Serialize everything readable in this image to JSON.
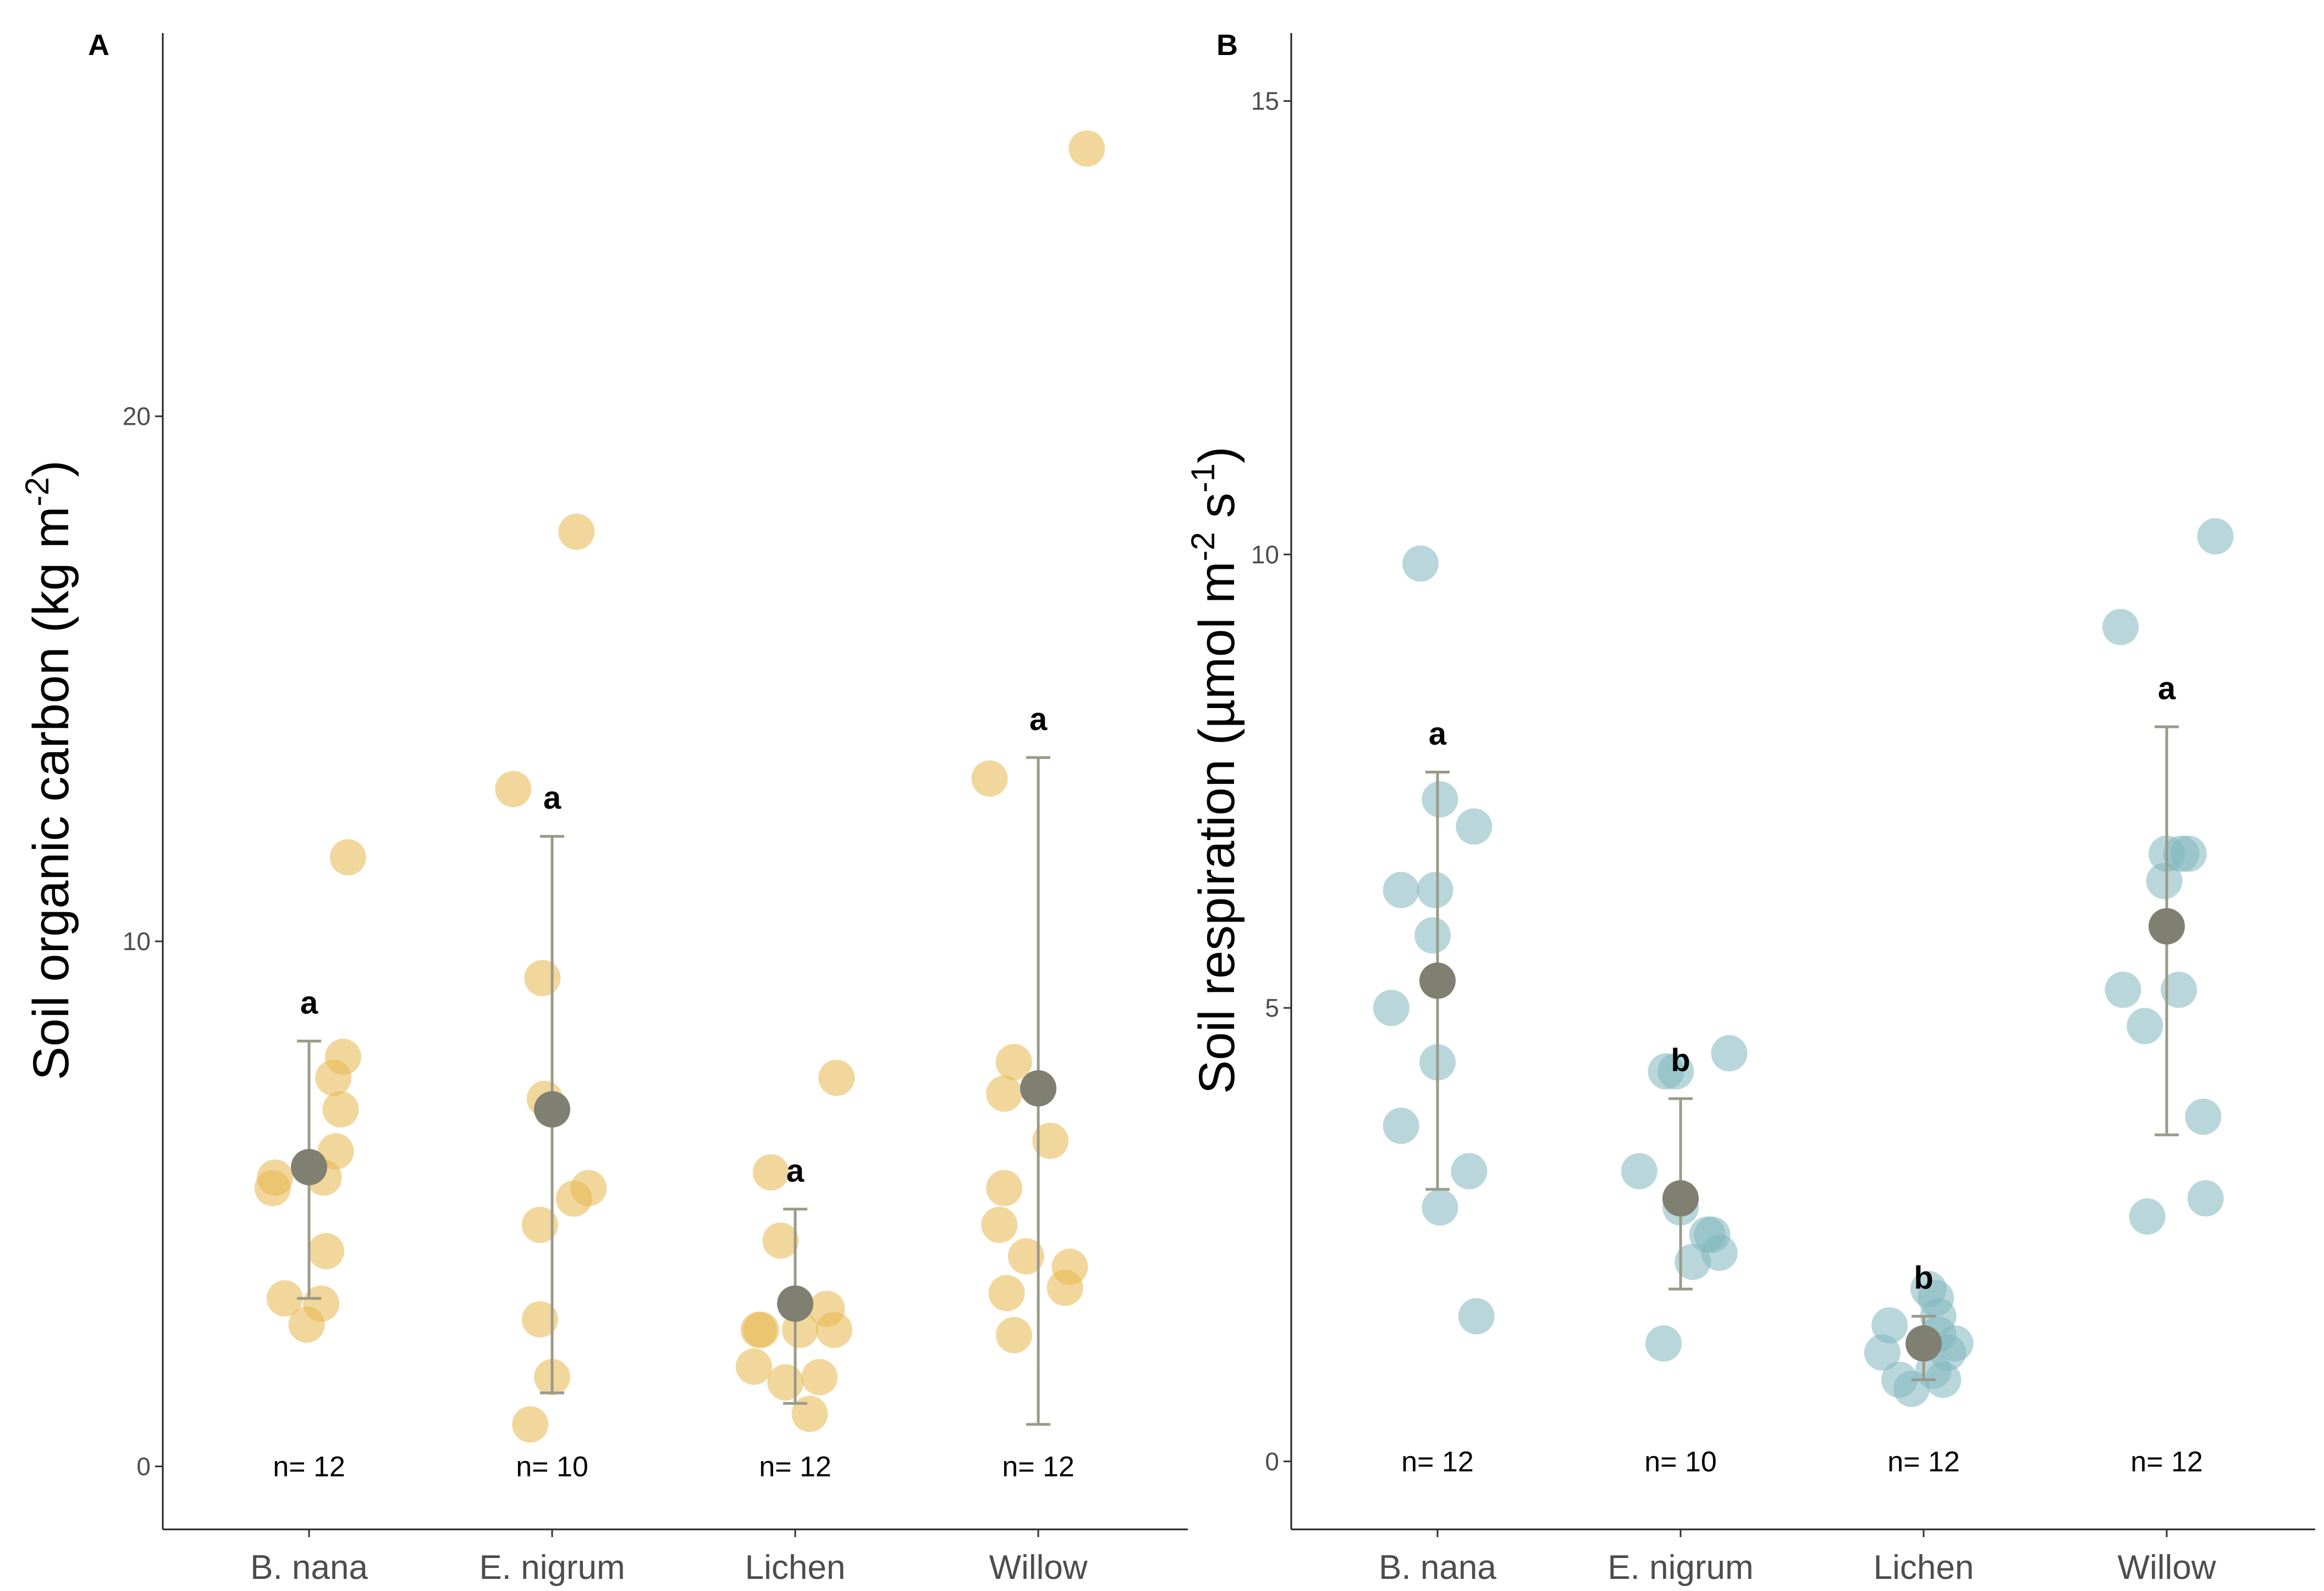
{
  "chart_data": [
    {
      "type": "scatter",
      "panel": "A",
      "ylabel": {
        "main": "Soil organic carbon (kg m",
        "sup": "-2",
        "close": ")"
      },
      "ylim": [
        -1.2,
        27.3
      ],
      "yticks": [
        0,
        10,
        20
      ],
      "categories": [
        "B. nana",
        "E. nigrum",
        "Lichen",
        "Willow"
      ],
      "point_color": "#e8b64c",
      "mean_color": "#7f7f72",
      "errorbar_color": "#9a9a88",
      "groups": [
        {
          "category": "B. nana",
          "n_label": "n= 12",
          "letter": "a",
          "mean": 5.7,
          "err_low": 3.2,
          "err_high": 8.1,
          "points": [
            [
              -0.15,
              5.3
            ],
            [
              -0.14,
              5.5
            ],
            [
              -0.1,
              3.2
            ],
            [
              -0.01,
              2.7
            ],
            [
              0.05,
              3.1
            ],
            [
              0.06,
              5.5
            ],
            [
              0.07,
              4.1
            ],
            [
              0.1,
              7.4
            ],
            [
              0.11,
              6.0
            ],
            [
              0.13,
              6.8
            ],
            [
              0.14,
              7.8
            ],
            [
              0.16,
              11.6
            ]
          ]
        },
        {
          "category": "E. nigrum",
          "n_label": "n= 10",
          "letter": "a",
          "mean": 6.8,
          "err_low": 1.4,
          "err_high": 12.0,
          "points": [
            [
              -0.16,
              12.9
            ],
            [
              -0.09,
              0.8
            ],
            [
              -0.05,
              2.8
            ],
            [
              -0.05,
              4.6
            ],
            [
              -0.04,
              9.3
            ],
            [
              -0.03,
              7.0
            ],
            [
              0.0,
              1.7
            ],
            [
              0.09,
              5.1
            ],
            [
              0.1,
              17.8
            ],
            [
              0.15,
              5.3
            ]
          ]
        },
        {
          "category": "Lichen",
          "n_label": "n= 12",
          "letter": "a",
          "mean": 3.1,
          "err_low": 1.2,
          "err_high": 4.9,
          "points": [
            [
              -0.17,
              1.9
            ],
            [
              -0.15,
              2.6
            ],
            [
              -0.14,
              2.6
            ],
            [
              -0.1,
              5.6
            ],
            [
              -0.06,
              4.3
            ],
            [
              -0.04,
              1.6
            ],
            [
              0.02,
              2.6
            ],
            [
              0.06,
              1.0
            ],
            [
              0.1,
              1.7
            ],
            [
              0.13,
              3.0
            ],
            [
              0.16,
              2.6
            ],
            [
              0.17,
              7.4
            ]
          ]
        },
        {
          "category": "Willow",
          "n_label": "n= 12",
          "letter": "a",
          "mean": 7.2,
          "err_low": 0.8,
          "err_high": 13.5,
          "points": [
            [
              -0.2,
              13.1
            ],
            [
              -0.16,
              4.6
            ],
            [
              -0.14,
              7.1
            ],
            [
              -0.14,
              5.3
            ],
            [
              -0.13,
              3.3
            ],
            [
              -0.1,
              2.5
            ],
            [
              -0.1,
              7.7
            ],
            [
              -0.05,
              4.0
            ],
            [
              0.05,
              6.2
            ],
            [
              0.11,
              3.4
            ],
            [
              0.13,
              3.8
            ],
            [
              0.2,
              25.1
            ]
          ]
        }
      ]
    },
    {
      "type": "scatter",
      "panel": "B",
      "ylabel": {
        "main": "Soil respiration (µmol m",
        "sup": "-2",
        "mid": " s",
        "sup2": "-1",
        "close": ")"
      },
      "ylim": [
        -0.75,
        15.75
      ],
      "yticks": [
        0,
        5,
        10,
        15
      ],
      "categories": [
        "B. nana",
        "E. nigrum",
        "Lichen",
        "Willow"
      ],
      "point_color": "#7fb7bd",
      "mean_color": "#7f7f72",
      "errorbar_color": "#9a9a88",
      "groups": [
        {
          "category": "B. nana",
          "n_label": "n= 12",
          "letter": "a",
          "mean": 5.3,
          "err_low": 3.0,
          "err_high": 7.6,
          "points": [
            [
              -0.19,
              5.0
            ],
            [
              -0.15,
              3.7
            ],
            [
              -0.15,
              6.3
            ],
            [
              -0.07,
              9.9
            ],
            [
              -0.02,
              5.8
            ],
            [
              -0.01,
              6.3
            ],
            [
              0.0,
              4.4
            ],
            [
              0.01,
              7.3
            ],
            [
              0.01,
              2.8
            ],
            [
              0.13,
              3.2
            ],
            [
              0.15,
              7.0
            ],
            [
              0.16,
              1.6
            ]
          ]
        },
        {
          "category": "E. nigrum",
          "n_label": "n= 10",
          "letter": "b",
          "mean": 2.9,
          "err_low": 1.9,
          "err_high": 4.0,
          "points": [
            [
              -0.17,
              3.2
            ],
            [
              -0.02,
              4.3
            ],
            [
              -0.06,
              4.3
            ],
            [
              -0.07,
              1.3
            ],
            [
              0.0,
              2.8
            ],
            [
              0.05,
              2.2
            ],
            [
              0.11,
              2.5
            ],
            [
              0.13,
              2.5
            ],
            [
              0.16,
              2.3
            ],
            [
              0.2,
              4.5
            ]
          ]
        },
        {
          "category": "Lichen",
          "n_label": "n= 12",
          "letter": "b",
          "mean": 1.3,
          "err_low": 0.9,
          "err_high": 1.6,
          "points": [
            [
              -0.17,
              1.2
            ],
            [
              -0.14,
              1.5
            ],
            [
              -0.1,
              0.9
            ],
            [
              -0.05,
              0.8
            ],
            [
              0.02,
              1.9
            ],
            [
              0.04,
              1.0
            ],
            [
              0.05,
              1.8
            ],
            [
              0.06,
              1.6
            ],
            [
              0.06,
              1.4
            ],
            [
              0.08,
              0.9
            ],
            [
              0.1,
              1.2
            ],
            [
              0.13,
              1.3
            ]
          ]
        },
        {
          "category": "Willow",
          "n_label": "n= 12",
          "letter": "a",
          "mean": 5.9,
          "err_low": 3.6,
          "err_high": 8.1,
          "points": [
            [
              -0.19,
              9.2
            ],
            [
              -0.18,
              5.2
            ],
            [
              -0.09,
              4.8
            ],
            [
              -0.08,
              2.7
            ],
            [
              0.0,
              6.7
            ],
            [
              -0.01,
              6.4
            ],
            [
              0.06,
              6.7
            ],
            [
              0.05,
              5.2
            ],
            [
              0.09,
              6.7
            ],
            [
              0.15,
              3.8
            ],
            [
              0.16,
              2.9
            ],
            [
              0.2,
              10.2
            ]
          ]
        }
      ]
    }
  ]
}
